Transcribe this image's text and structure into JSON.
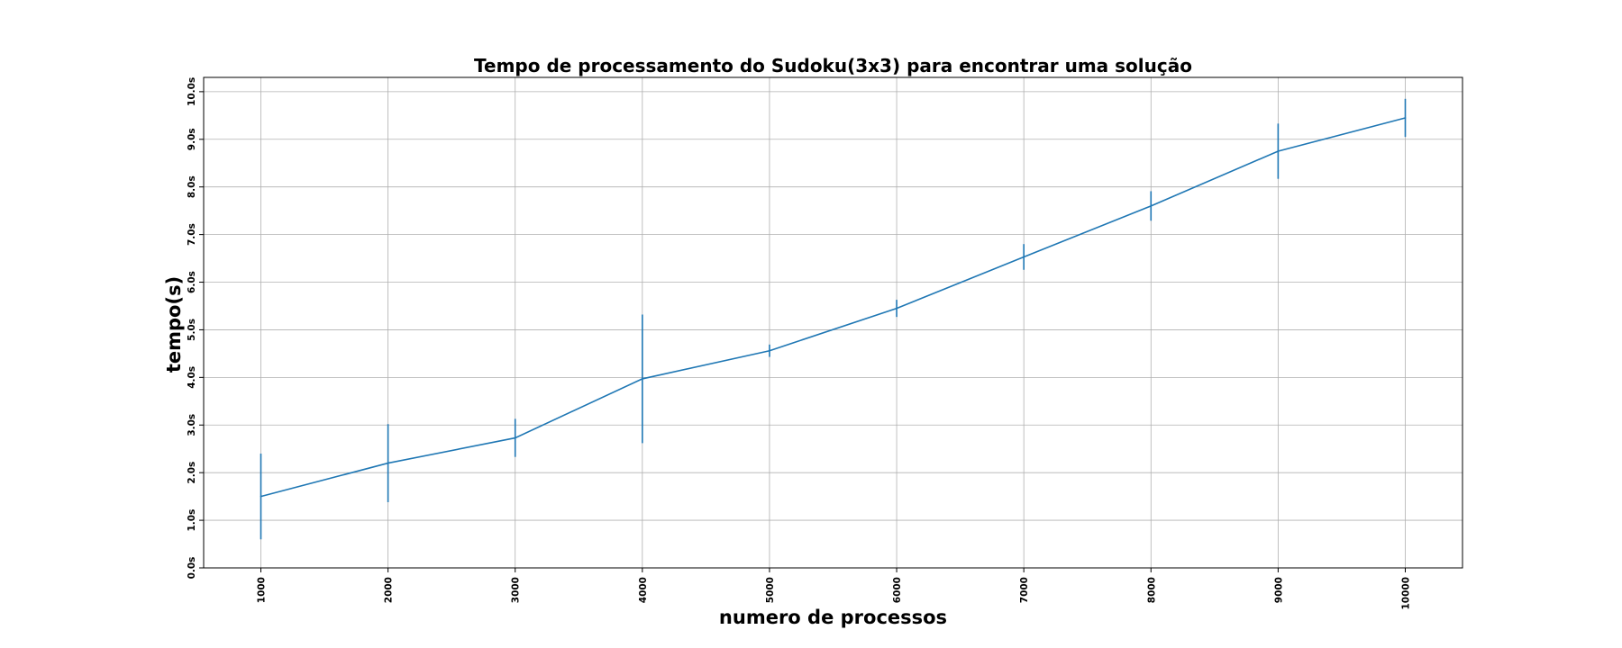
{
  "chart_data": {
    "type": "line",
    "title": "Tempo de processamento do Sudoku(3x3) para encontrar uma solução",
    "xlabel": "numero de processos",
    "ylabel": "tempo(s)",
    "x": [
      1000,
      2000,
      3000,
      4000,
      5000,
      6000,
      7000,
      8000,
      9000,
      10000
    ],
    "x_tick_labels": [
      "1000",
      "2000",
      "3000",
      "4000",
      "5000",
      "6000",
      "7000",
      "8000",
      "9000",
      "10000"
    ],
    "y_tick_labels": [
      "0.0s",
      "1.0s",
      "2.0s",
      "3.0s",
      "4.0s",
      "5.0s",
      "6.0s",
      "7.0s",
      "8.0s",
      "9.0s",
      "10.0s"
    ],
    "y_ticks": [
      0,
      1,
      2,
      3,
      4,
      5,
      6,
      7,
      8,
      9,
      10
    ],
    "xlim": [
      550,
      10450
    ],
    "ylim": [
      0,
      10.3
    ],
    "grid": true,
    "series": [
      {
        "values": [
          1.5,
          2.2,
          2.73,
          3.97,
          4.56,
          5.45,
          6.53,
          7.6,
          8.75,
          9.45
        ],
        "error": [
          0.9,
          0.82,
          0.4,
          1.35,
          0.13,
          0.18,
          0.27,
          0.31,
          0.58,
          0.4
        ],
        "color": "#1f77b4"
      }
    ]
  }
}
